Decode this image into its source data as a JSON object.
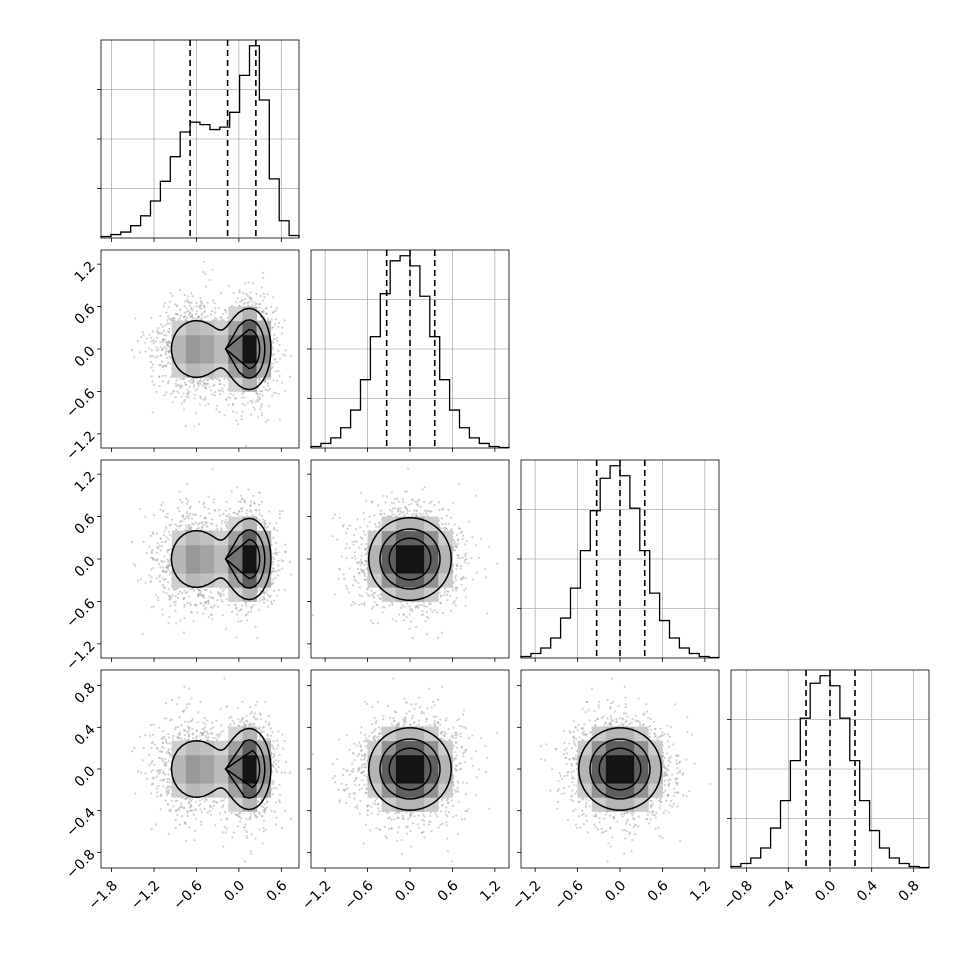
{
  "chart_data": {
    "type": "corner",
    "grid": true,
    "parameters": [
      {
        "ticks": [
          -1.8,
          -1.2,
          -0.6,
          0.0,
          0.6
        ],
        "tick_labels": [
          "−1.8",
          "−1.2",
          "−0.6",
          "0.0",
          "0.6"
        ],
        "range": [
          -1.95,
          0.85
        ],
        "quantiles": [
          -0.69,
          -0.16,
          0.24
        ],
        "histogram": {
          "bins": [
            -1.95,
            -1.81,
            -1.67,
            -1.53,
            -1.39,
            -1.25,
            -1.11,
            -0.97,
            -0.83,
            -0.69,
            -0.55,
            -0.41,
            -0.27,
            -0.13,
            0.01,
            0.15,
            0.29,
            0.43,
            0.57,
            0.71,
            0.85
          ],
          "counts": [
            0.3,
            0.7,
            1.2,
            2.5,
            4.5,
            7.5,
            11.5,
            16.5,
            21.5,
            23.5,
            23.0,
            22.0,
            22.5,
            25.5,
            33.0,
            39.0,
            28.0,
            12.0,
            3.5,
            0.5
          ]
        },
        "density_mix": [
          {
            "mean": -0.6,
            "sd": 0.3,
            "weight": 0.45
          },
          {
            "mean": 0.15,
            "sd": 0.18,
            "weight": 0.55
          }
        ]
      },
      {
        "ticks": [
          -1.2,
          -0.6,
          0.0,
          0.6,
          1.2
        ],
        "tick_labels": [
          "−1.2",
          "−0.6",
          "0.0",
          "0.6",
          "1.2"
        ],
        "range": [
          -1.4,
          1.4
        ],
        "quantiles": [
          -0.33,
          0.0,
          0.35
        ],
        "histogram": {
          "bins": [
            -1.4,
            -1.26,
            -1.12,
            -0.98,
            -0.84,
            -0.7,
            -0.56,
            -0.42,
            -0.28,
            -0.14,
            0.0,
            0.14,
            0.28,
            0.42,
            0.56,
            0.7,
            0.84,
            0.98,
            1.12,
            1.26,
            1.4
          ],
          "counts": [
            0.3,
            0.9,
            2.0,
            4.0,
            7.5,
            13.5,
            22.0,
            30.5,
            37.0,
            38.0,
            36.0,
            30.0,
            22.0,
            13.5,
            7.5,
            4.0,
            2.0,
            0.9,
            0.3,
            0.1
          ]
        },
        "density_mix": [
          {
            "mean": 0.0,
            "sd": 0.34,
            "weight": 1.0
          }
        ]
      },
      {
        "ticks": [
          -1.2,
          -0.6,
          0.0,
          0.6,
          1.2
        ],
        "tick_labels": [
          "−1.2",
          "−0.6",
          "0.0",
          "0.6",
          "1.2"
        ],
        "range": [
          -1.4,
          1.4
        ],
        "quantiles": [
          -0.33,
          0.0,
          0.35
        ],
        "histogram": {
          "bins": [
            -1.4,
            -1.26,
            -1.12,
            -0.98,
            -0.84,
            -0.7,
            -0.56,
            -0.42,
            -0.28,
            -0.14,
            0.0,
            0.14,
            0.28,
            0.42,
            0.56,
            0.7,
            0.84,
            0.98,
            1.12,
            1.26,
            1.4
          ],
          "counts": [
            0.3,
            0.9,
            2.0,
            4.0,
            8.0,
            14.0,
            21.5,
            29.5,
            36.0,
            38.5,
            36.5,
            30.0,
            21.5,
            13.0,
            7.5,
            4.0,
            2.0,
            0.9,
            0.3,
            0.1
          ]
        },
        "density_mix": [
          {
            "mean": 0.0,
            "sd": 0.34,
            "weight": 1.0
          }
        ]
      },
      {
        "ticks": [
          -0.8,
          -0.4,
          0.0,
          0.4,
          0.8
        ],
        "tick_labels": [
          "−0.8",
          "−0.4",
          "0.0",
          "0.4",
          "0.8"
        ],
        "range": [
          -0.95,
          0.95
        ],
        "quantiles": [
          -0.23,
          0.0,
          0.24
        ],
        "histogram": {
          "bins": [
            -0.95,
            -0.855,
            -0.76,
            -0.665,
            -0.57,
            -0.475,
            -0.38,
            -0.285,
            -0.19,
            -0.095,
            0.0,
            0.095,
            0.19,
            0.285,
            0.38,
            0.475,
            0.57,
            0.665,
            0.76,
            0.855,
            0.95
          ],
          "counts": [
            0.3,
            0.9,
            2.0,
            4.0,
            8.0,
            13.5,
            21.5,
            30.0,
            37.0,
            38.5,
            36.5,
            30.0,
            21.5,
            13.5,
            7.5,
            4.0,
            2.0,
            0.9,
            0.3,
            0.1
          ]
        },
        "density_mix": [
          {
            "mean": 0.0,
            "sd": 0.23,
            "weight": 1.0
          }
        ]
      }
    ],
    "quantile_style": "dashed",
    "contour_levels": [
      0.25,
      0.5,
      0.75
    ],
    "colors": {
      "line": "#000000",
      "grid": "#b0b0b0",
      "points": "#9a9a9a",
      "background": "#ffffff"
    }
  }
}
